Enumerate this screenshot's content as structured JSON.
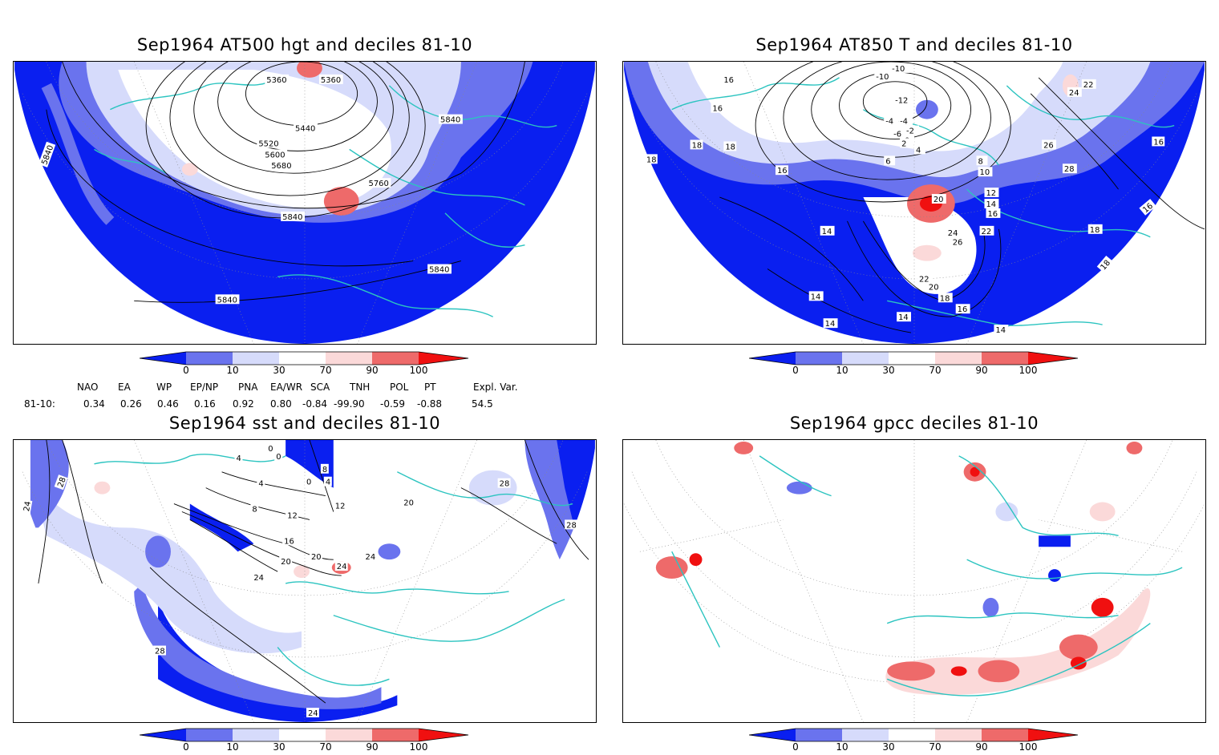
{
  "colors": {
    "deep_blue": "#0a1ff0",
    "mid_blue": "#6a73ee",
    "light_blue": "#d6dbfb",
    "light_red": "#fbd9d9",
    "mid_red": "#ee6a6a",
    "deep_red": "#f01010",
    "coast": "#2cc4c0",
    "contour": "#000000"
  },
  "colorbar": {
    "labels": [
      "0",
      "10",
      "30",
      "70",
      "90",
      "100"
    ]
  },
  "panels": [
    {
      "id": "hgt500",
      "title": "Sep1964 AT500 hgt and deciles 81-10",
      "contour_labels": [
        "5360",
        "5360",
        "5440",
        "5520",
        "5600",
        "5680",
        "5760",
        "5840",
        "5840",
        "5840",
        "5840",
        "5840"
      ]
    },
    {
      "id": "t850",
      "title": "Sep1964 AT850 T and deciles 81-10",
      "contour_labels": [
        "16",
        "16",
        "18",
        "18",
        "18",
        "16",
        "16",
        "-10",
        "-10",
        "-12",
        "-4",
        "-2",
        "-4",
        "-6",
        "0",
        "2",
        "4",
        "6",
        "8",
        "10",
        "12",
        "14",
        "16",
        "20",
        "22",
        "24",
        "26",
        "22",
        "20",
        "18",
        "16",
        "14",
        "14",
        "14",
        "14",
        "18",
        "18",
        "22",
        "24",
        "26",
        "28",
        "16",
        "16",
        "14"
      ]
    },
    {
      "id": "sst",
      "title": "Sep1964 sst and deciles 81-10",
      "contour_labels": [
        "0",
        "0",
        "4",
        "0",
        "4",
        "8",
        "4",
        "8",
        "12",
        "12",
        "16",
        "20",
        "20",
        "24",
        "24",
        "24",
        "28",
        "28",
        "24",
        "28",
        "20",
        "28",
        "24"
      ]
    },
    {
      "id": "gpcc",
      "title": "Sep1964 gpcc deciles 81-10",
      "contour_labels": []
    }
  ],
  "indices": {
    "headers": [
      "NAO",
      "EA",
      "WP",
      "EP/NP",
      "PNA",
      "EA/WR",
      "SCA",
      "TNH",
      "POL",
      "PT",
      "Expl. Var."
    ],
    "row_label": "81-10:",
    "values": [
      "0.34",
      "0.26",
      "0.46",
      "0.16",
      "0.92",
      "0.80",
      "-0.84",
      "-99.90",
      "-0.59",
      "-0.88",
      "54.5"
    ]
  }
}
